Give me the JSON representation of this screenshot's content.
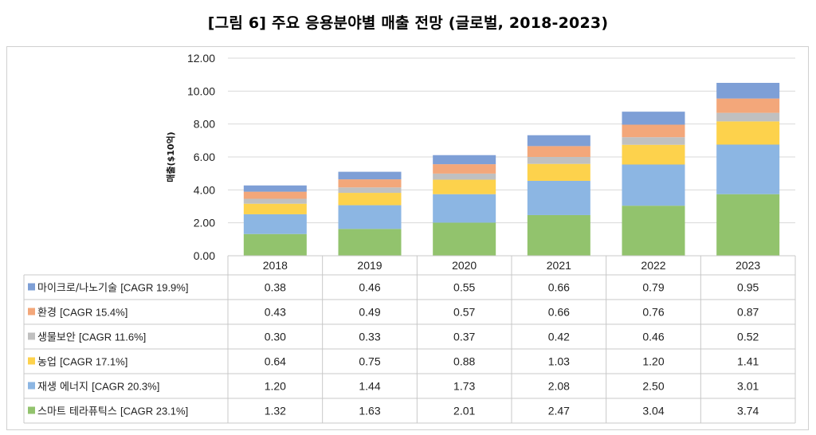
{
  "title": "[그림 6] 주요 응용분야별 매출 전망 (글로벌, 2018-2023)",
  "chart_data": {
    "type": "bar",
    "stacked": true,
    "title": "[그림 6] 주요 응용분야별 매출 전망 (글로벌, 2018-2023)",
    "xlabel": "",
    "ylabel": "매출($10억)",
    "ylim": [
      0,
      12
    ],
    "yticks": [
      "0.00",
      "2.00",
      "4.00",
      "6.00",
      "8.00",
      "10.00",
      "12.00"
    ],
    "grid": true,
    "legend": "data-table",
    "categories": [
      "2018",
      "2019",
      "2020",
      "2021",
      "2022",
      "2023"
    ],
    "series": [
      {
        "name": "스마트 테라퓨틱스",
        "cagr": "[CAGR 23.1%]",
        "color": "#92c36d",
        "values": [
          1.32,
          1.63,
          2.01,
          2.47,
          3.04,
          3.74
        ],
        "labels": [
          "1.32",
          "1.63",
          "2.01",
          "2.47",
          "3.04",
          "3.74"
        ]
      },
      {
        "name": "재생 에너지",
        "cagr": "[CAGR 20.3%]",
        "color": "#8cb6e3",
        "values": [
          1.2,
          1.44,
          1.73,
          2.08,
          2.5,
          3.01
        ],
        "labels": [
          "1.20",
          "1.44",
          "1.73",
          "2.08",
          "2.50",
          "3.01"
        ]
      },
      {
        "name": "농업",
        "cagr": "[CAGR 17.1%]",
        "color": "#fdd24c",
        "values": [
          0.64,
          0.75,
          0.88,
          1.03,
          1.2,
          1.41
        ],
        "labels": [
          "0.64",
          "0.75",
          "0.88",
          "1.03",
          "1.20",
          "1.41"
        ]
      },
      {
        "name": "생물보안",
        "cagr": "[CAGR 11.6%]",
        "color": "#c0c0c0",
        "values": [
          0.3,
          0.33,
          0.37,
          0.42,
          0.46,
          0.52
        ],
        "labels": [
          "0.30",
          "0.33",
          "0.37",
          "0.42",
          "0.46",
          "0.52"
        ]
      },
      {
        "name": "환경",
        "cagr": "[CAGR 15.4%]",
        "color": "#f3a77a",
        "values": [
          0.43,
          0.49,
          0.57,
          0.66,
          0.76,
          0.87
        ],
        "labels": [
          "0.43",
          "0.49",
          "0.57",
          "0.66",
          "0.76",
          "0.87"
        ]
      },
      {
        "name": "마이크로/나노기술",
        "cagr": "[CAGR 19.9%]",
        "color": "#7e9fd6",
        "values": [
          0.38,
          0.46,
          0.55,
          0.66,
          0.79,
          0.95
        ],
        "labels": [
          "0.38",
          "0.46",
          "0.55",
          "0.66",
          "0.79",
          "0.95"
        ]
      }
    ],
    "table_order": [
      "마이크로/나노기술",
      "환경",
      "생물보안",
      "농업",
      "재생 에너지",
      "스마트 테라퓨틱스"
    ]
  }
}
